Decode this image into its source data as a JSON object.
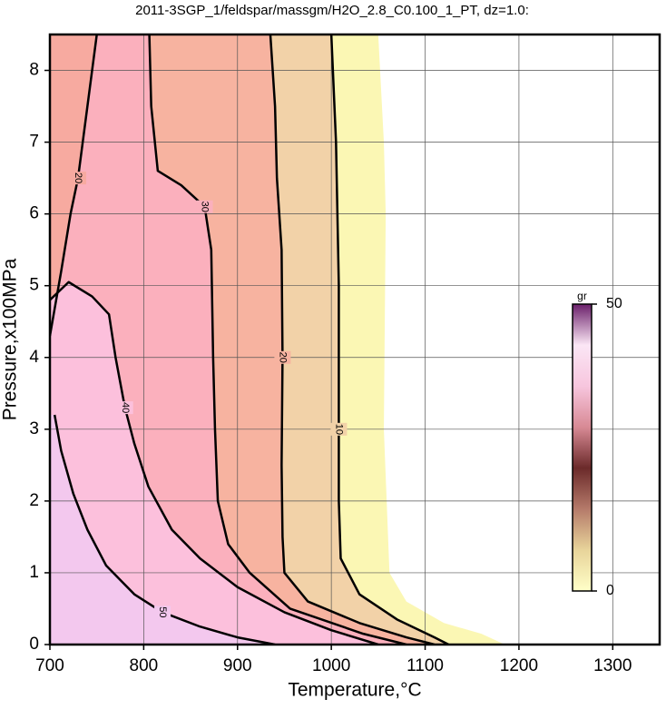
{
  "chart_data": {
    "type": "contour",
    "title": "2011-3SGP_1/feldspar/massgm/H2O_2.8_C0.100_1_PT, dz=1.0:",
    "x_label": "Temperature,°C",
    "y_label": "Pressure,x100MPa",
    "xlim": [
      700,
      1350
    ],
    "ylim": [
      0,
      8.5
    ],
    "xticks": [
      700,
      800,
      900,
      1000,
      1100,
      1200,
      1300
    ],
    "yticks": [
      0,
      1,
      2,
      3,
      4,
      5,
      6,
      7,
      8
    ],
    "grid": true,
    "contours": [
      {
        "level": 0,
        "color": "#fbf7b4",
        "x": [
          1050,
          1056,
          1058,
          1056,
          1062,
          1080,
          1120,
          1160,
          1185
        ],
        "y": [
          8.5,
          7,
          6,
          3,
          1,
          0.6,
          0.3,
          0.15,
          0
        ]
      },
      {
        "level": 10,
        "color": "#f2d2a8",
        "x": [
          1000,
          1005,
          1008,
          1008,
          1008,
          1010,
          1030,
          1070,
          1110,
          1125
        ],
        "y": [
          8.5,
          7,
          5,
          3,
          2,
          1.2,
          0.7,
          0.35,
          0.1,
          0
        ]
      },
      {
        "level": 20,
        "color": "#f7b3a0",
        "x": [
          935,
          940,
          942,
          947,
          948,
          947,
          948,
          950,
          975,
          1030,
          1080,
          1110
        ],
        "y": [
          8.5,
          7.5,
          6.5,
          5.5,
          4,
          2.5,
          1.5,
          1,
          0.6,
          0.3,
          0.1,
          0
        ]
      },
      {
        "level": 30,
        "color": "#fbb0bd",
        "x": [
          806,
          808,
          815,
          840,
          865,
          872,
          874,
          876,
          879,
          890,
          913,
          956,
          1034,
          1080
        ],
        "y": [
          8.5,
          7.5,
          6.6,
          6.4,
          6.1,
          5.5,
          4,
          3,
          2,
          1.4,
          1,
          0.5,
          0.15,
          0
        ]
      },
      {
        "level": 20,
        "color": "#f7aaa0",
        "x": [
          750,
          740,
          730,
          722,
          712,
          700
        ],
        "y": [
          8.5,
          7.5,
          6.5,
          6,
          5.2,
          4.3
        ]
      },
      {
        "level": 40,
        "color": "#fcc0dc",
        "x": [
          700,
          720,
          745,
          763,
          770,
          780,
          790,
          805,
          830,
          860,
          900,
          950,
          1000,
          1050
        ],
        "y": [
          4.8,
          5.05,
          4.85,
          4.6,
          4,
          3.3,
          2.8,
          2.2,
          1.6,
          1.2,
          0.8,
          0.45,
          0.2,
          0
        ]
      },
      {
        "level": 50,
        "color": "#f3c8ee",
        "x": [
          705,
          712,
          725,
          740,
          760,
          790,
          820,
          860,
          900,
          940
        ],
        "y": [
          3.2,
          2.7,
          2.1,
          1.6,
          1.1,
          0.7,
          0.45,
          0.25,
          0.1,
          0
        ]
      }
    ],
    "colorbar": {
      "label": "gr",
      "min": 0,
      "max": 50,
      "ticks": [
        0,
        50
      ],
      "colors": [
        "#ffffc8",
        "#e8d49a",
        "#b57a6a",
        "#6b2a2a",
        "#d88a95",
        "#f7c6de",
        "#fbe6f5",
        "#6a1f6a"
      ]
    }
  }
}
